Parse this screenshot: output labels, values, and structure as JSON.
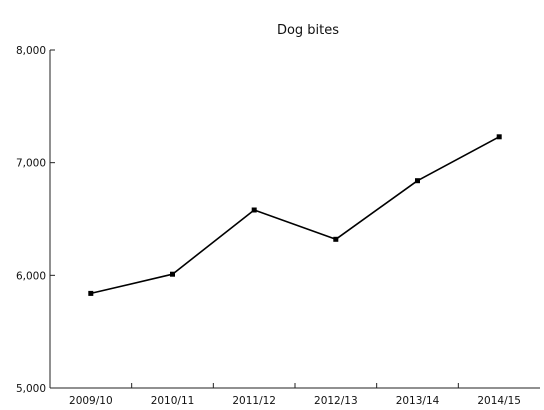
{
  "chart_data": {
    "type": "line",
    "title": "Dog bites",
    "xlabel": "",
    "ylabel": "",
    "categories": [
      "2009/10",
      "2010/11",
      "2011/12",
      "2012/13",
      "2013/14",
      "2014/15"
    ],
    "series": [
      {
        "values": [
          5840,
          6010,
          6580,
          6320,
          6840,
          7230
        ]
      }
    ],
    "ylim": [
      5000,
      8000
    ],
    "yticks": [
      5000,
      6000,
      7000,
      8000
    ],
    "ytick_labels": [
      "5,000",
      "6,000",
      "7,000",
      "8,000"
    ],
    "grid": false,
    "legend": "none",
    "colors": {
      "line": "#000000",
      "axis": "#222222",
      "text": "#111111"
    }
  }
}
